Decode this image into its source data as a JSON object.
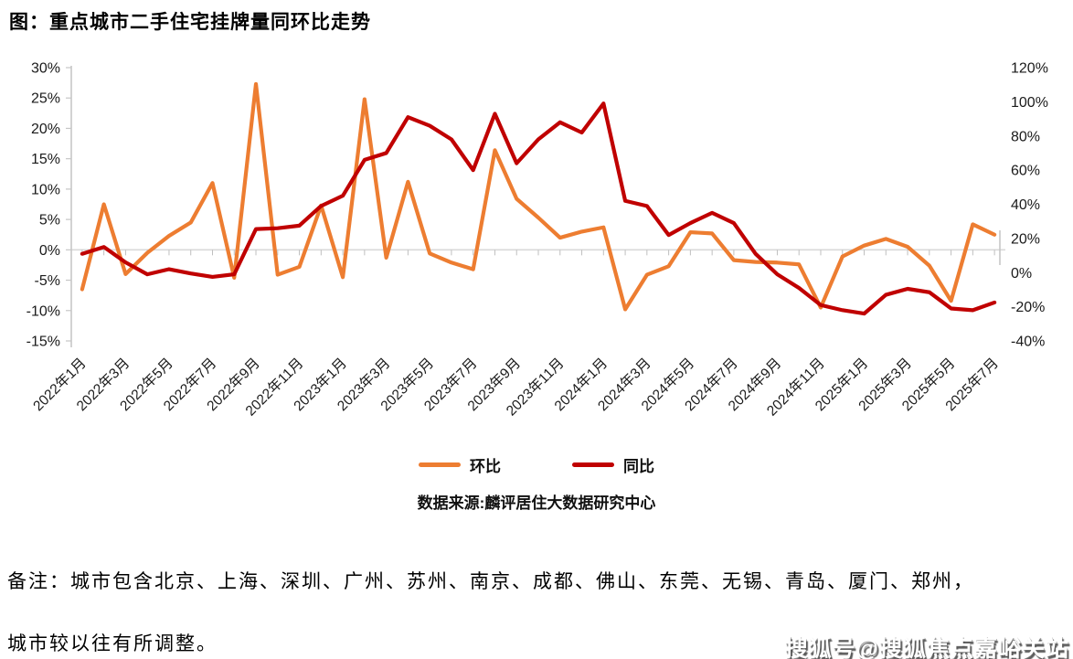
{
  "page": {
    "title": "图：重点城市二手住宅挂牌量同环比走势",
    "source": "数据来源:麟评居住大数据研究中心",
    "note_line1": "备注：城市包含北京、上海、深圳、广州、苏州、南京、成都、佛山、东莞、无锡、青岛、厦门、郑州，",
    "note_line2": "城市较以往有所调整。",
    "watermark": "搜狐号@搜狐焦点嘉峪关站"
  },
  "chart_data": {
    "type": "line",
    "title": "图：重点城市二手住宅挂牌量同环比走势",
    "legend_position": "bottom",
    "grid": "zero-line-only",
    "months": [
      "2022年1月",
      "2022年2月",
      "2022年3月",
      "2022年4月",
      "2022年5月",
      "2022年6月",
      "2022年7月",
      "2022年8月",
      "2022年9月",
      "2022年10月",
      "2022年11月",
      "2022年12月",
      "2023年1月",
      "2023年2月",
      "2023年3月",
      "2023年4月",
      "2023年5月",
      "2023年6月",
      "2023年7月",
      "2023年8月",
      "2023年9月",
      "2023年10月",
      "2023年11月",
      "2023年12月",
      "2024年1月",
      "2024年2月",
      "2024年3月",
      "2024年4月",
      "2024年5月",
      "2024年6月",
      "2024年7月",
      "2024年8月",
      "2024年9月",
      "2024年10月",
      "2024年11月",
      "2024年12月",
      "2025年1月",
      "2025年2月",
      "2025年3月",
      "2025年4月",
      "2025年5月",
      "2025年6月",
      "2025年7月"
    ],
    "x_tick_labels": [
      "2022年1月",
      "2022年3月",
      "2022年5月",
      "2022年7月",
      "2022年9月",
      "2022年11月",
      "2023年1月",
      "2023年3月",
      "2023年5月",
      "2023年7月",
      "2023年9月",
      "2023年11月",
      "2024年1月",
      "2024年3月",
      "2024年5月",
      "2024年7月",
      "2024年9月",
      "2024年11月",
      "2025年1月",
      "2025年3月",
      "2025年5月",
      "2025年7月"
    ],
    "series": [
      {
        "name": "环比",
        "axis": "left",
        "color": "#ED7D31",
        "values": [
          -6.5,
          7.5,
          -4.0,
          -0.5,
          2.3,
          4.5,
          11.0,
          -4.6,
          27.3,
          -4.1,
          -2.8,
          7.3,
          -4.5,
          24.8,
          -1.3,
          11.2,
          -0.6,
          -2.1,
          -3.2,
          16.4,
          8.4,
          5.3,
          2.0,
          3.0,
          3.7,
          -9.8,
          -4.1,
          -2.7,
          2.9,
          2.7,
          -1.7,
          -2.0,
          -2.1,
          -2.4,
          -9.5,
          -1.1,
          0.7,
          1.8,
          0.5,
          -2.6,
          -8.4,
          4.2,
          2.5
        ]
      },
      {
        "name": "同比",
        "axis": "right",
        "color": "#C00000",
        "values": [
          11,
          15,
          6,
          -1,
          2,
          -0.5,
          -2.5,
          -1,
          25.5,
          26,
          27.5,
          39,
          45,
          66,
          70,
          91,
          86,
          78,
          60,
          93,
          64,
          78,
          88,
          82,
          99,
          42,
          39,
          22,
          29,
          35,
          29,
          11,
          -1,
          -9,
          -19,
          -22,
          -24,
          -13,
          -9.5,
          -11.5,
          -21,
          -22,
          -17.5
        ]
      }
    ],
    "left_axis": {
      "min": -15,
      "max": 30,
      "tick_labels": [
        "30%",
        "25%",
        "20%",
        "15%",
        "10%",
        "5%",
        "0%",
        "-5%",
        "-10%",
        "-15%"
      ]
    },
    "right_axis": {
      "min": -40,
      "max": 120,
      "tick_labels": [
        "120%",
        "100%",
        "80%",
        "60%",
        "40%",
        "20%",
        "0%",
        "-20%",
        "-40%"
      ]
    },
    "colors": {
      "gridline": "#D9D9D9",
      "axis_line": "#C6C6C6",
      "tick": "#BFBFBF",
      "text": "#1a1a1a"
    }
  }
}
